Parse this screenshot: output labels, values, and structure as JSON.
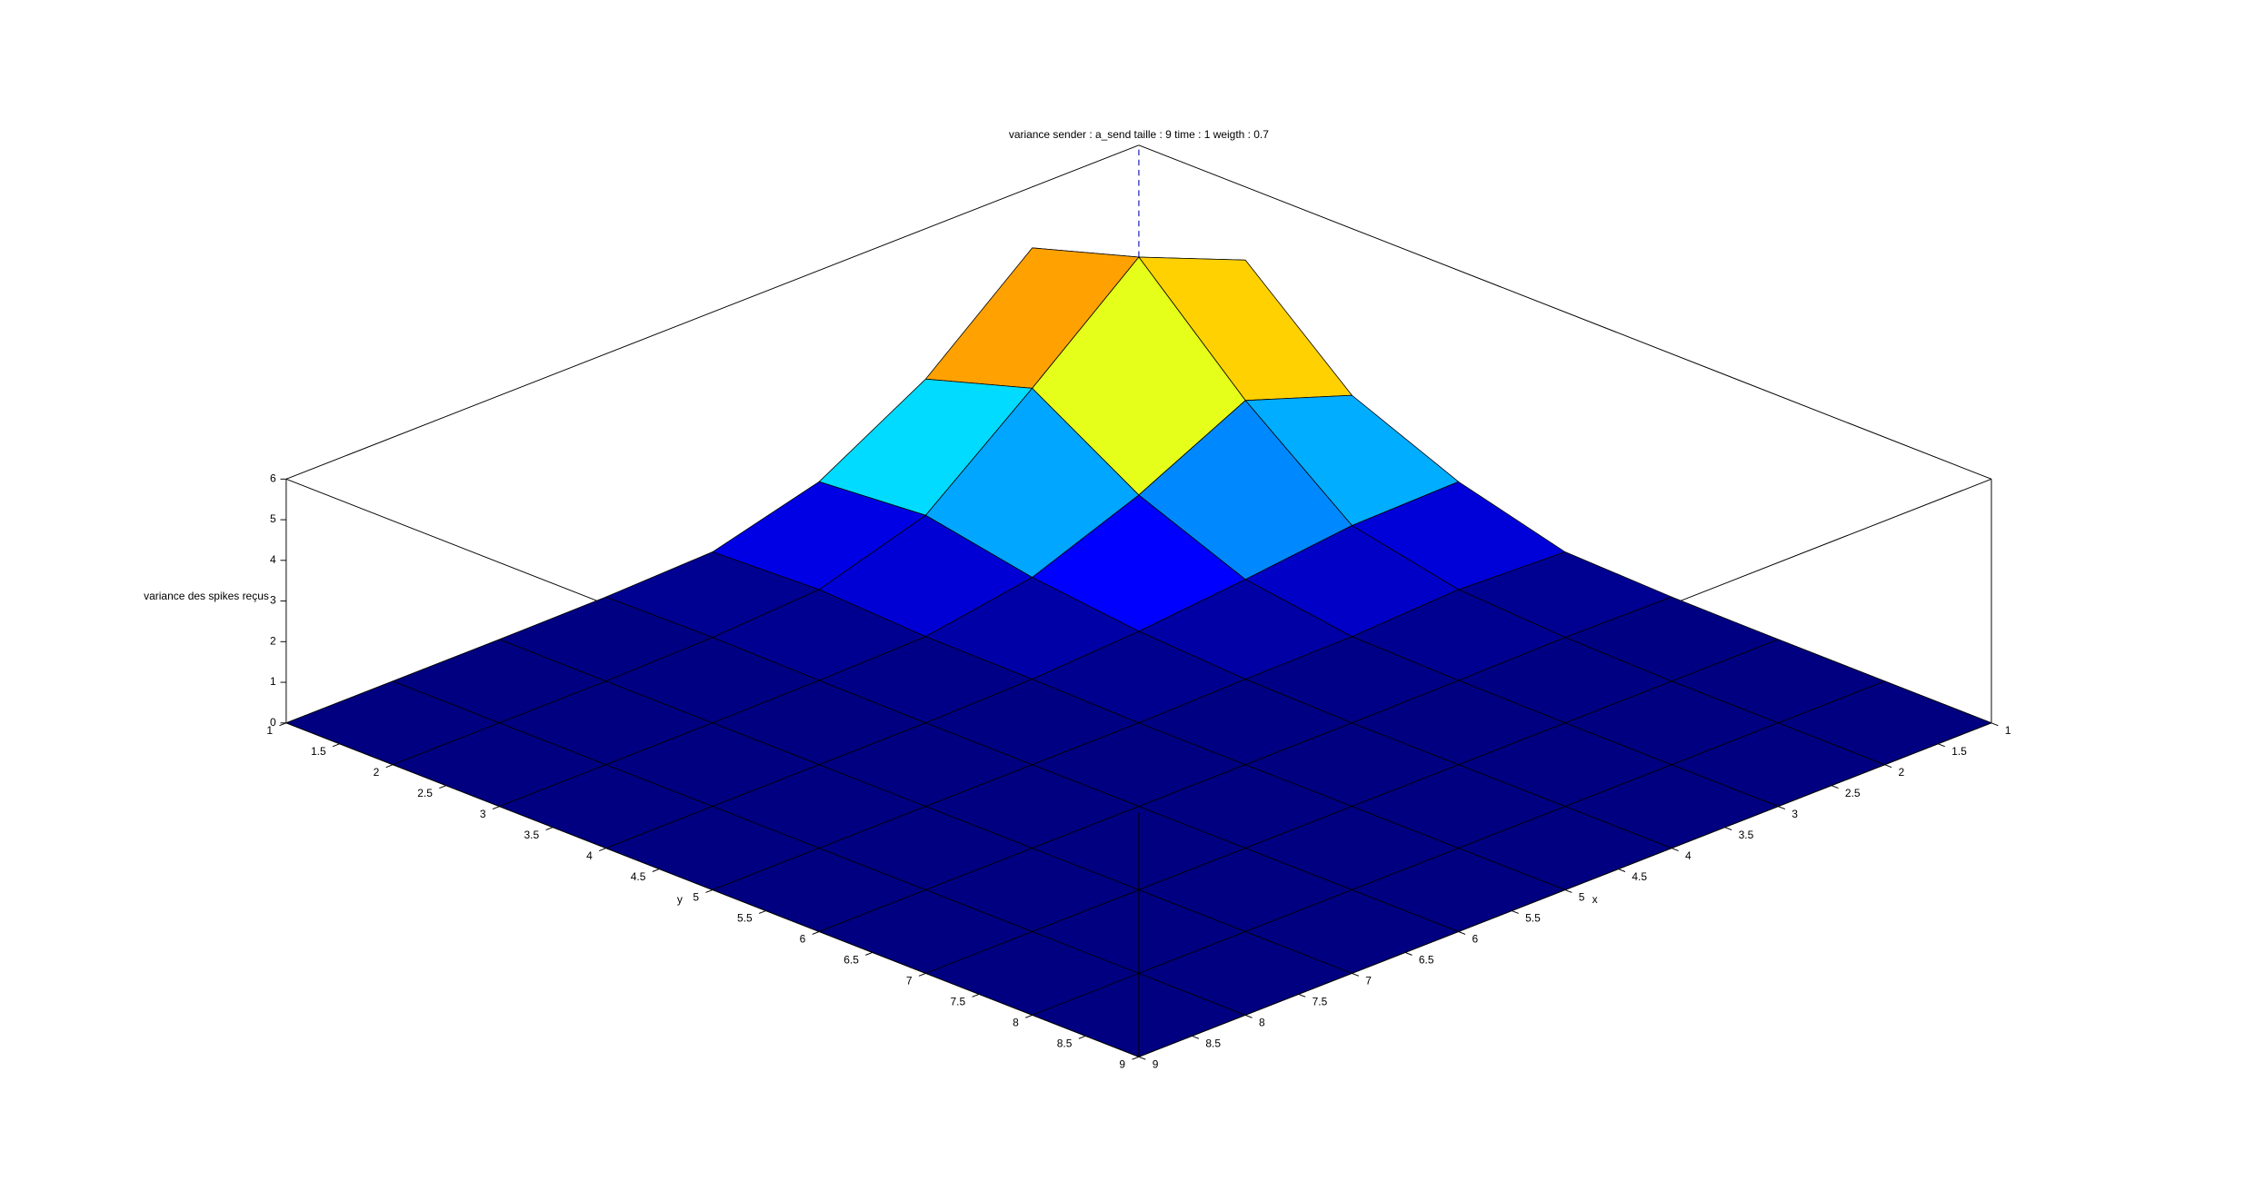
{
  "chart_data": {
    "type": "surface3d",
    "title": "variance sender : a_send taille : 9 time : 1 weigth : 0.7",
    "x_label": "x",
    "y_label": "y",
    "z_label": "variance des spikes reçus",
    "x": [
      1,
      2,
      3,
      4,
      5,
      6,
      7,
      8,
      9
    ],
    "y": [
      1,
      2,
      3,
      4,
      5,
      6,
      7,
      8,
      9
    ],
    "z": [
      [
        3.0,
        4.2,
        1.9,
        0.8,
        0.1,
        0.02,
        0,
        0,
        0
      ],
      [
        4.5,
        5.3,
        2.8,
        0.75,
        0.2,
        0.05,
        0,
        0,
        0
      ],
      [
        2.3,
        3.1,
        1.5,
        0.45,
        0.07,
        0.02,
        0,
        0,
        0
      ],
      [
        0.8,
        1.0,
        0.5,
        0.2,
        0.05,
        0,
        0,
        0,
        0
      ],
      [
        0.1,
        0.2,
        0.07,
        0.05,
        0,
        0,
        0,
        0,
        0
      ],
      [
        0.02,
        0.05,
        0.02,
        0,
        0,
        0,
        0,
        0,
        0
      ],
      [
        0,
        0,
        0,
        0,
        0,
        0,
        0,
        0,
        0
      ],
      [
        0,
        0,
        0,
        0,
        0,
        0,
        0,
        0,
        0
      ],
      [
        0,
        0,
        0,
        0,
        0,
        0,
        0,
        0,
        0
      ]
    ],
    "xlim": [
      1,
      9
    ],
    "ylim": [
      1,
      9
    ],
    "zlim": [
      0,
      6
    ],
    "xticks": [
      1,
      1.5,
      2,
      2.5,
      3,
      3.5,
      4,
      4.5,
      5,
      5.5,
      6,
      6.5,
      7,
      7.5,
      8,
      8.5,
      9
    ],
    "yticks": [
      1,
      1.5,
      2,
      2.5,
      3,
      3.5,
      4,
      4.5,
      5,
      5.5,
      6,
      6.5,
      7,
      7.5,
      8,
      8.5,
      9
    ],
    "zticks": [
      0,
      1,
      2,
      3,
      4,
      5,
      6
    ],
    "colormap": "jet",
    "edge_color": "#000000"
  }
}
